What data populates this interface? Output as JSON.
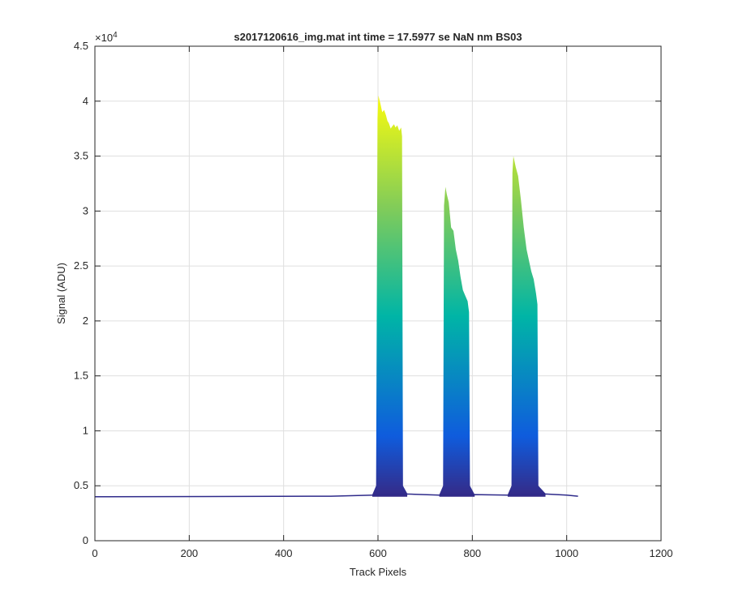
{
  "chart_data": {
    "type": "area",
    "title": "s2017120616_img.mat int time = 17.5977 se  NaN nm BS03",
    "xlabel": "Track Pixels",
    "ylabel": "Signal (ADU)",
    "y_exponent_label": "×10",
    "y_exponent_power": "4",
    "xlim": [
      0,
      1200
    ],
    "ylim": [
      0,
      45000
    ],
    "xticks": [
      0,
      200,
      400,
      600,
      800,
      1000,
      1200
    ],
    "xtick_labels": [
      "0",
      "200",
      "400",
      "600",
      "800",
      "1000",
      "1200"
    ],
    "yticks": [
      0,
      5000,
      10000,
      15000,
      20000,
      25000,
      30000,
      35000,
      40000,
      45000
    ],
    "ytick_labels": [
      "0",
      "0.5",
      "1",
      "1.5",
      "2",
      "2.5",
      "3",
      "3.5",
      "4",
      "4.5"
    ],
    "grid": true,
    "colormap": "parula",
    "colors": {
      "low": "#352a87",
      "mid_low": "#0f5cdd",
      "mid": "#00b5a6",
      "mid_high": "#81cc59",
      "high": "#f9fb0e",
      "baseline": "#2e2a8a"
    },
    "baseline_level": 4000,
    "peaks": [
      {
        "profile": [
          {
            "x": 588,
            "y": 4200
          },
          {
            "x": 596,
            "y": 5000
          },
          {
            "x": 599,
            "y": 38500
          },
          {
            "x": 601,
            "y": 40500
          },
          {
            "x": 605,
            "y": 39800
          },
          {
            "x": 609,
            "y": 39000
          },
          {
            "x": 613,
            "y": 39200
          },
          {
            "x": 617,
            "y": 38700
          },
          {
            "x": 620,
            "y": 38200
          },
          {
            "x": 623,
            "y": 38000
          },
          {
            "x": 627,
            "y": 37500
          },
          {
            "x": 630,
            "y": 37700
          },
          {
            "x": 634,
            "y": 37900
          },
          {
            "x": 637,
            "y": 37600
          },
          {
            "x": 641,
            "y": 37800
          },
          {
            "x": 645,
            "y": 37300
          },
          {
            "x": 649,
            "y": 37600
          },
          {
            "x": 651,
            "y": 36800
          },
          {
            "x": 653,
            "y": 5000
          },
          {
            "x": 662,
            "y": 4300
          }
        ]
      },
      {
        "profile": [
          {
            "x": 730,
            "y": 4200
          },
          {
            "x": 738,
            "y": 5000
          },
          {
            "x": 740,
            "y": 30500
          },
          {
            "x": 743,
            "y": 32200
          },
          {
            "x": 746,
            "y": 31500
          },
          {
            "x": 750,
            "y": 30800
          },
          {
            "x": 755,
            "y": 28500
          },
          {
            "x": 760,
            "y": 28200
          },
          {
            "x": 765,
            "y": 26500
          },
          {
            "x": 770,
            "y": 25500
          },
          {
            "x": 775,
            "y": 24000
          },
          {
            "x": 780,
            "y": 22800
          },
          {
            "x": 785,
            "y": 22300
          },
          {
            "x": 790,
            "y": 21800
          },
          {
            "x": 793,
            "y": 20800
          },
          {
            "x": 795,
            "y": 5000
          },
          {
            "x": 805,
            "y": 4200
          }
        ]
      },
      {
        "profile": [
          {
            "x": 875,
            "y": 4200
          },
          {
            "x": 883,
            "y": 5000
          },
          {
            "x": 885,
            "y": 33500
          },
          {
            "x": 887,
            "y": 35000
          },
          {
            "x": 892,
            "y": 34000
          },
          {
            "x": 897,
            "y": 33200
          },
          {
            "x": 903,
            "y": 31000
          },
          {
            "x": 909,
            "y": 28500
          },
          {
            "x": 915,
            "y": 26500
          },
          {
            "x": 920,
            "y": 25500
          },
          {
            "x": 925,
            "y": 24500
          },
          {
            "x": 930,
            "y": 23800
          },
          {
            "x": 935,
            "y": 22500
          },
          {
            "x": 938,
            "y": 21500
          },
          {
            "x": 940,
            "y": 5000
          },
          {
            "x": 955,
            "y": 4300
          }
        ]
      }
    ],
    "baseline_trace": [
      {
        "x": 0,
        "y": 4000
      },
      {
        "x": 500,
        "y": 4050
      },
      {
        "x": 590,
        "y": 4150
      },
      {
        "x": 660,
        "y": 4250
      },
      {
        "x": 730,
        "y": 4150
      },
      {
        "x": 805,
        "y": 4200
      },
      {
        "x": 875,
        "y": 4150
      },
      {
        "x": 955,
        "y": 4250
      },
      {
        "x": 1000,
        "y": 4150
      },
      {
        "x": 1024,
        "y": 4050
      }
    ]
  }
}
